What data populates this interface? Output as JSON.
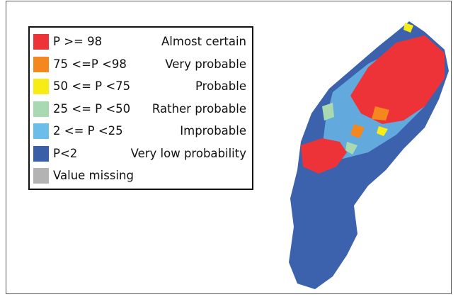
{
  "legend": {
    "items": [
      {
        "range": "P >= 98",
        "description": "Almost certain",
        "color": "#ee3338"
      },
      {
        "range": "75 <=P <98",
        "description": "Very probable",
        "color": "#f5871f"
      },
      {
        "range": "50 <= P <75",
        "description": "Probable",
        "color": "#f7ec13"
      },
      {
        "range": "25 <= P <50",
        "description": "Rather probable",
        "color": "#a8d9b0"
      },
      {
        "range": "2 <= P <25",
        "description": "Improbable",
        "color": "#6cbde9"
      },
      {
        "range": "P<2",
        "description": "Very low probability",
        "color": "#3a5ea8"
      },
      {
        "range": "Value missing",
        "color": "#b3b3b3"
      }
    ]
  }
}
